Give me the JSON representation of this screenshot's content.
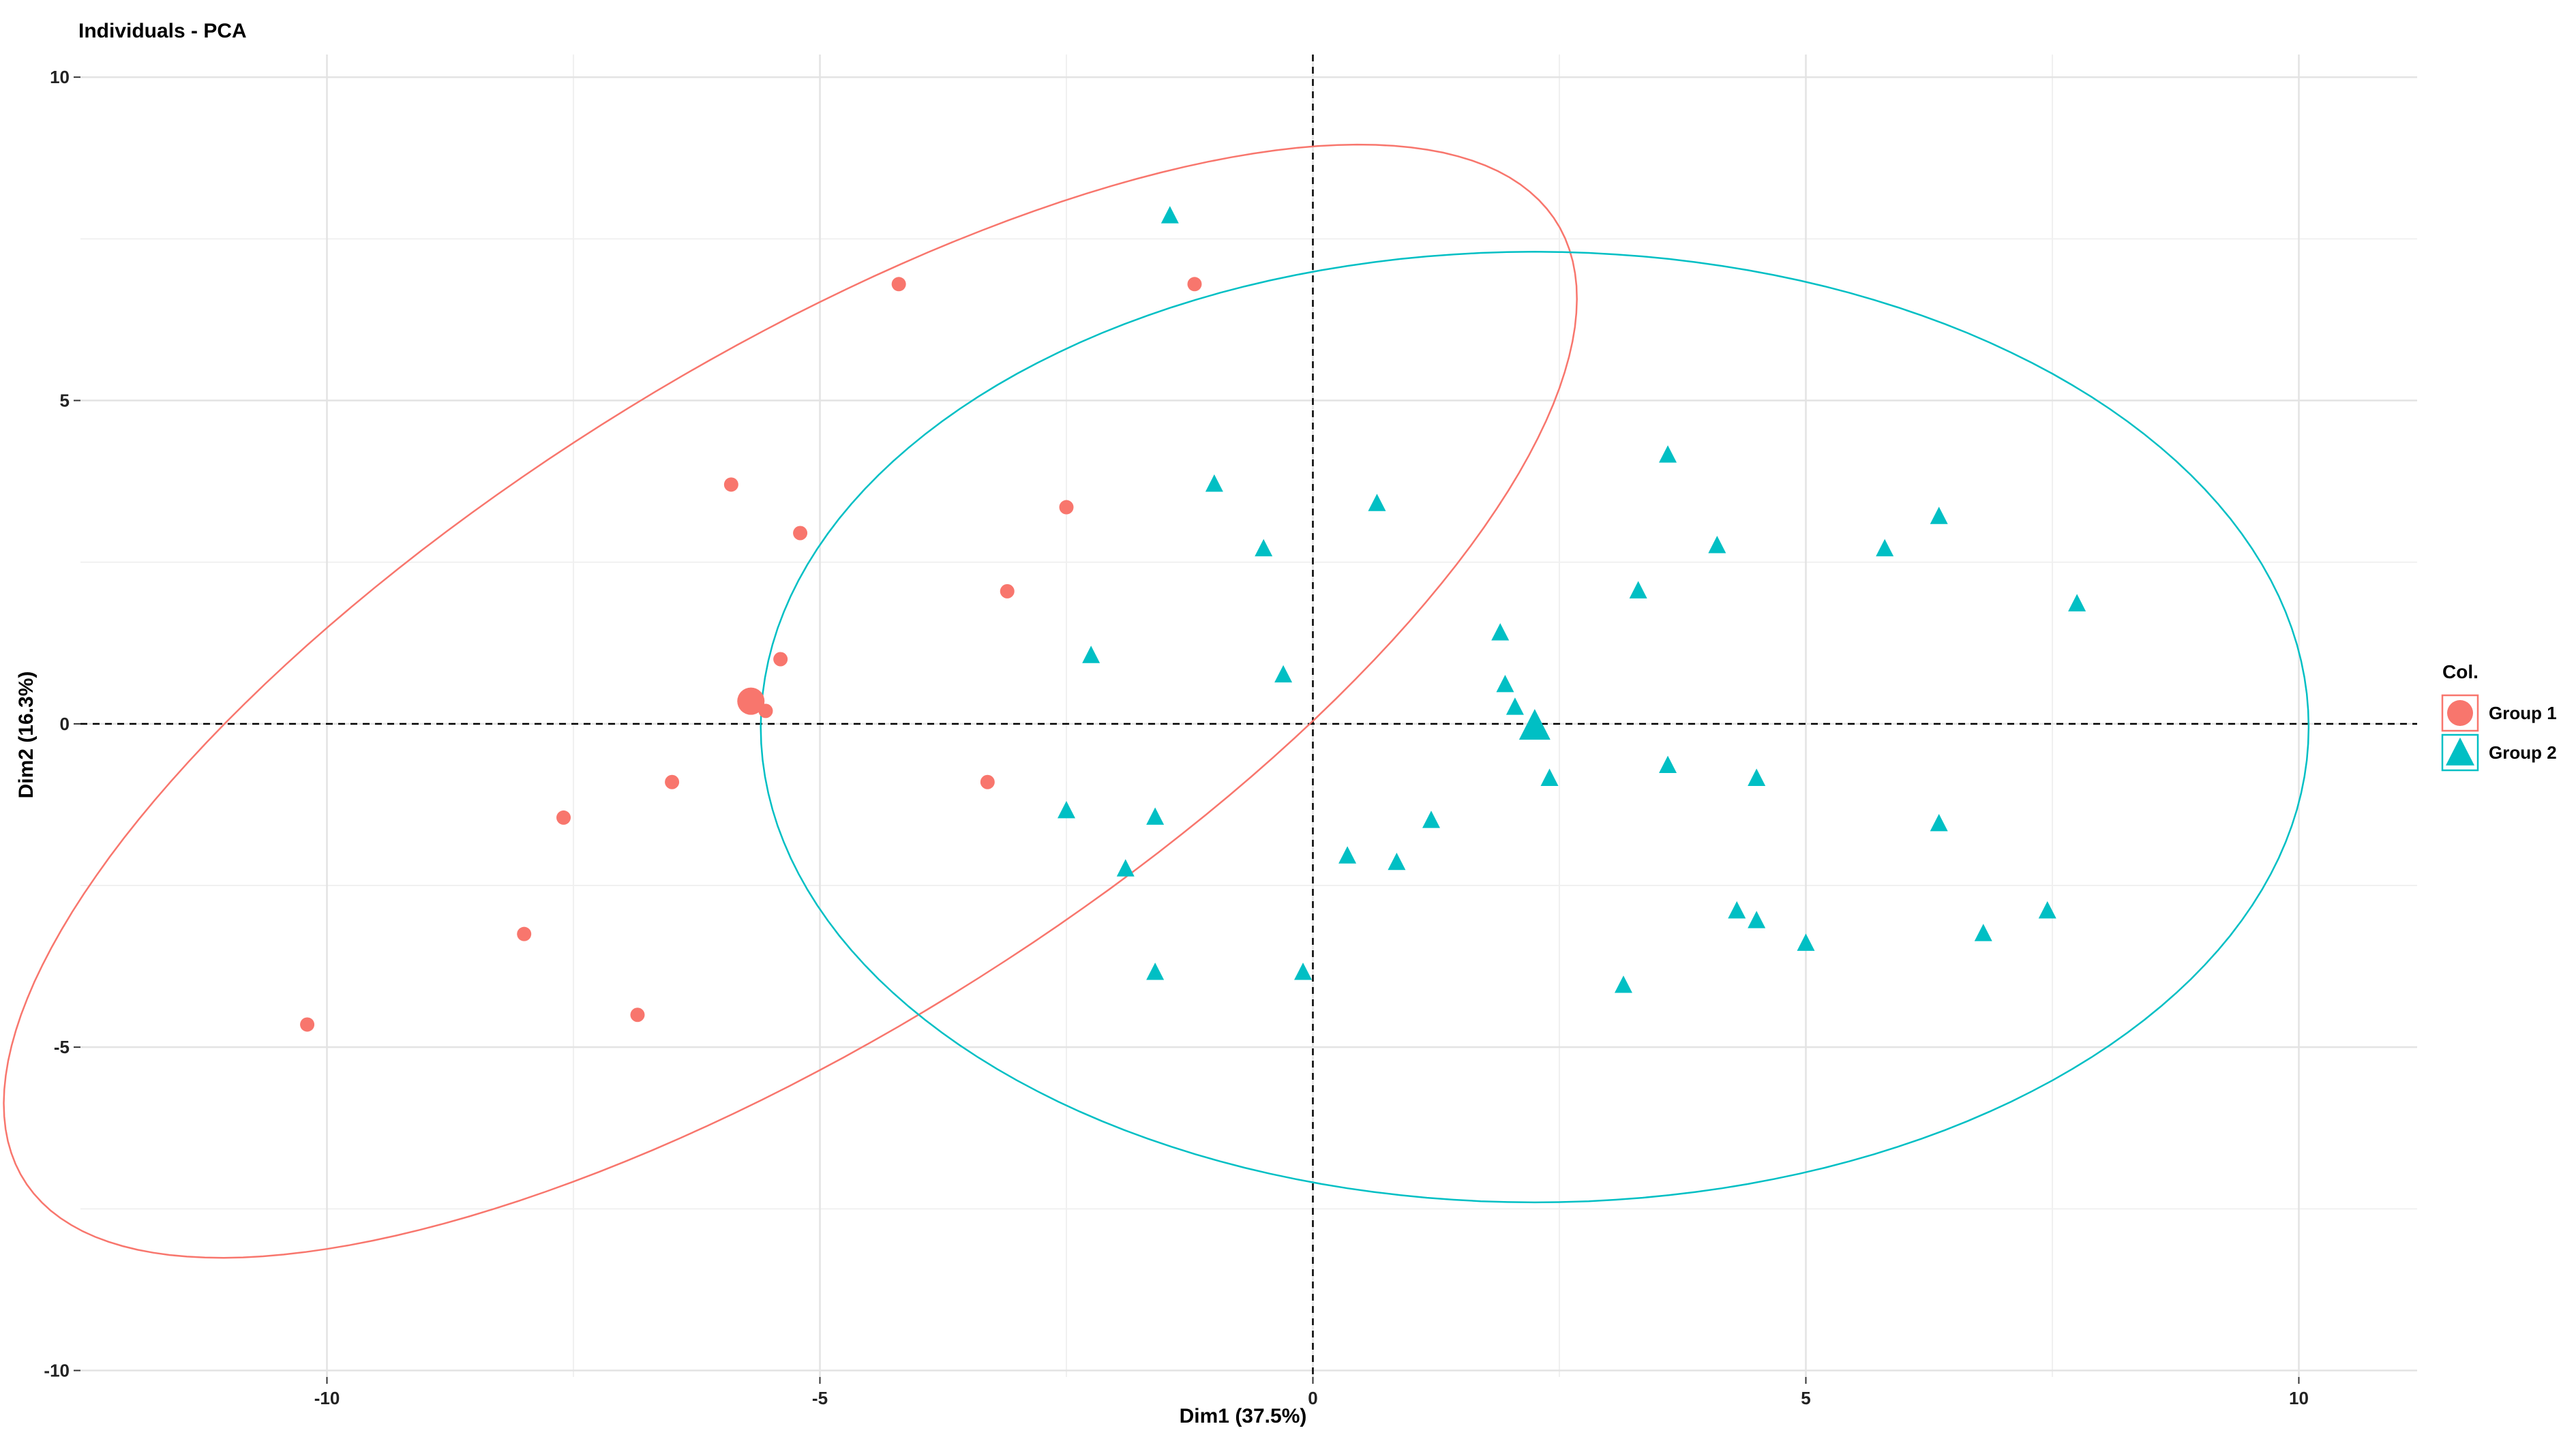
{
  "chart_data": {
    "type": "scatter",
    "title": "Individuals - PCA",
    "xlabel": "Dim1 (37.5%)",
    "ylabel": "Dim2 (16.3%)",
    "xlim": [
      -12.5,
      11.2
    ],
    "ylim": [
      -10.1,
      10.35
    ],
    "x_ticks": [
      -10,
      -5,
      0,
      5,
      10
    ],
    "y_ticks": [
      -10,
      -5,
      0,
      5,
      10
    ],
    "x_tick_labels": [
      "-10",
      "-5",
      "0",
      "5",
      "10"
    ],
    "y_tick_labels": [
      "-10",
      "-5",
      "0",
      "5",
      "10"
    ],
    "grid": true,
    "reference_lines": {
      "x": 0,
      "y": 0,
      "style": "dashed"
    },
    "legend": {
      "title": "Col.",
      "position": "right",
      "entries": [
        "Group 1",
        "Group 2"
      ]
    },
    "series": [
      {
        "name": "Group 1",
        "color": "#F8766D",
        "marker": "circle",
        "centroid": [
          -5.7,
          0.35
        ],
        "points": [
          [
            -1.2,
            6.8
          ],
          [
            -5.9,
            3.7
          ],
          [
            -5.2,
            2.95
          ],
          [
            -2.5,
            3.35
          ],
          [
            -3.1,
            2.05
          ],
          [
            -5.4,
            1.0
          ],
          [
            -5.55,
            0.2
          ],
          [
            -6.5,
            -0.9
          ],
          [
            -7.6,
            -1.45
          ],
          [
            -3.3,
            -0.9
          ],
          [
            -8.0,
            -3.25
          ],
          [
            -6.85,
            -4.5
          ],
          [
            -10.2,
            -4.65
          ],
          [
            -4.2,
            6.8
          ]
        ],
        "ellipse": {
          "center": [
            -5.3,
            0.35
          ],
          "semi_major": 10.9,
          "semi_minor": 4.35,
          "angle_deg": 48
        }
      },
      {
        "name": "Group 2",
        "color": "#00BFC4",
        "marker": "triangle",
        "centroid": [
          2.25,
          -0.05
        ],
        "points": [
          [
            -1.45,
            7.85
          ],
          [
            -1.0,
            3.7
          ],
          [
            -0.5,
            2.7
          ],
          [
            0.65,
            3.4
          ],
          [
            -2.25,
            1.05
          ],
          [
            -0.3,
            0.75
          ],
          [
            1.9,
            1.4
          ],
          [
            1.95,
            0.6
          ],
          [
            2.05,
            0.25
          ],
          [
            2.4,
            -0.85
          ],
          [
            3.3,
            2.05
          ],
          [
            3.6,
            4.15
          ],
          [
            4.1,
            2.75
          ],
          [
            3.6,
            -0.65
          ],
          [
            4.5,
            -0.85
          ],
          [
            5.8,
            2.7
          ],
          [
            6.35,
            3.2
          ],
          [
            7.75,
            1.85
          ],
          [
            6.35,
            -1.55
          ],
          [
            -2.5,
            -1.35
          ],
          [
            -1.6,
            -1.45
          ],
          [
            -1.9,
            -2.25
          ],
          [
            0.35,
            -2.05
          ],
          [
            0.85,
            -2.15
          ],
          [
            1.2,
            -1.5
          ],
          [
            -1.6,
            -3.85
          ],
          [
            -0.1,
            -3.85
          ],
          [
            4.3,
            -2.9
          ],
          [
            4.5,
            -3.05
          ],
          [
            5.0,
            -3.4
          ],
          [
            3.15,
            -4.05
          ],
          [
            6.8,
            -3.25
          ],
          [
            7.45,
            -2.9
          ]
        ],
        "ellipse": {
          "center": [
            2.25,
            -0.05
          ],
          "semi_major": 7.85,
          "semi_minor": 7.35,
          "angle_deg": 0
        }
      }
    ]
  }
}
